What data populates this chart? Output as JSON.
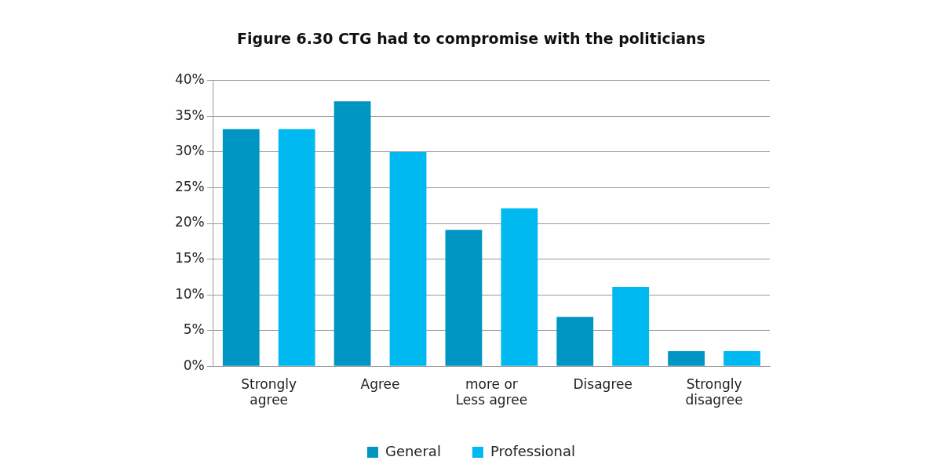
{
  "chart_data": {
    "type": "bar",
    "title": "Figure 6.30 CTG had to compromise with the politicians",
    "categories": [
      "Strongly agree",
      "Agree",
      "more or Less agree",
      "Disagree",
      "Strongly disagree"
    ],
    "series": [
      {
        "name": "General",
        "color": "#0096c3",
        "values": [
          33.2,
          37.1,
          19.1,
          6.9,
          2.1
        ]
      },
      {
        "name": "Professional",
        "color": "#00b9f0",
        "values": [
          33.2,
          30,
          22.1,
          11.1,
          2.1
        ]
      }
    ],
    "ylim": [
      0,
      40
    ],
    "yticks": [
      {
        "value": 0,
        "label": "0%"
      },
      {
        "value": 5,
        "label": "5%"
      },
      {
        "value": 10,
        "label": "10%"
      },
      {
        "value": 15,
        "label": "15%"
      },
      {
        "value": 20,
        "label": "20%"
      },
      {
        "value": 25,
        "label": "25%"
      },
      {
        "value": 30,
        "label": "30%"
      },
      {
        "value": 35,
        "label": "35%"
      },
      {
        "value": 40,
        "label": "40%"
      }
    ],
    "grid": "y",
    "legend": "bottom"
  }
}
